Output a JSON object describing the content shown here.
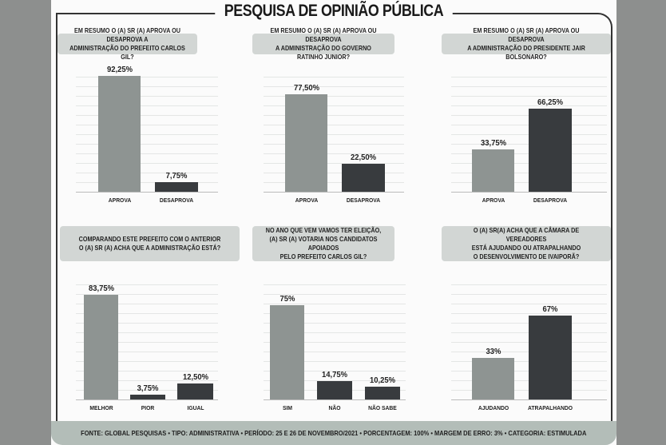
{
  "title": "PESQUISA DE OPINIÃO PÚBLICA",
  "colors": {
    "light_bar": "#8e9492",
    "dark_bar": "#383b3e",
    "question_bg": "#d2d6d4",
    "footer_bg": "#b3bdb8"
  },
  "footer": "FONTE: GLOBAL PESQUISAS • TIPO: ADMINISTRATIVA • PERÍODO: 25 E 26 DE NOVEMBRO/2021 • PORCENTAGEM: 100% • MARGEM DE ERRO: 3% • CATEGORIA: ESTIMULADA",
  "chart_data": [
    {
      "type": "bar",
      "title": "EM RESUMO O (A) SR (A) APROVA OU DESAPROVA A\nADMINISTRAÇÃO DO PREFEITO CARLOS GIL?",
      "categories": [
        "APROVA",
        "DESAPROVA"
      ],
      "values": [
        92.25,
        7.75
      ],
      "labels": [
        "92,25%",
        "7,75%"
      ],
      "ylim": [
        0,
        100
      ],
      "grid": true
    },
    {
      "type": "bar",
      "title": "EM RESUMO O (A) SR (A) APROVA OU DESAPROVA\nA ADMINISTRAÇÃO DO GOVERNO RATINHO JUNIOR?",
      "categories": [
        "APROVA",
        "DESAPROVA"
      ],
      "values": [
        77.5,
        22.5
      ],
      "labels": [
        "77,50%",
        "22,50%"
      ],
      "ylim": [
        0,
        100
      ],
      "grid": true
    },
    {
      "type": "bar",
      "title": "EM RESUMO O (A) SR (A) APROVA OU DESAPROVA\nA ADMINISTRAÇÃO DO PRESIDENTE JAIR BOLSONARO?",
      "categories": [
        "APROVA",
        "DESAPROVA"
      ],
      "values": [
        33.75,
        66.25
      ],
      "labels": [
        "33,75%",
        "66,25%"
      ],
      "ylim": [
        0,
        100
      ],
      "grid": true
    },
    {
      "type": "bar",
      "title": "COMPARANDO ESTE PREFEITO COM O ANTERIOR\nO (A) SR (A) ACHA QUE A ADMINISTRAÇÃO ESTÁ?",
      "categories": [
        "MELHOR",
        "PIOR",
        "IGUAL"
      ],
      "values": [
        83.75,
        3.75,
        12.5
      ],
      "labels": [
        "83,75%",
        "3,75%",
        "12,50%"
      ],
      "ylim": [
        0,
        100
      ],
      "grid": true
    },
    {
      "type": "bar",
      "title": "NO ANO QUE VEM VAMOS TER ELEIÇÃO,\n(A) SR (A) VOTARIA NOS CANDIDATOS APOIADOS\nPELO PREFEITO CARLOS GIL?",
      "categories": [
        "SIM",
        "NÃO",
        "NÃO SABE"
      ],
      "values": [
        75,
        14.75,
        10.25
      ],
      "labels": [
        "75%",
        "14,75%",
        "10,25%"
      ],
      "ylim": [
        0,
        100
      ],
      "grid": true
    },
    {
      "type": "bar",
      "title": "O (A) SR(A) ACHA QUE A CÂMARA DE VEREADORES\nESTÁ AJUDANDO OU ATRAPALHANDO\nO DESENVOLVIMENTO DE IVAIPORÃ?",
      "categories": [
        "AJUDANDO",
        "ATRAPALHANDO"
      ],
      "values": [
        33,
        67
      ],
      "labels": [
        "33%",
        "67%"
      ],
      "ylim": [
        0,
        100
      ],
      "grid": true
    }
  ]
}
